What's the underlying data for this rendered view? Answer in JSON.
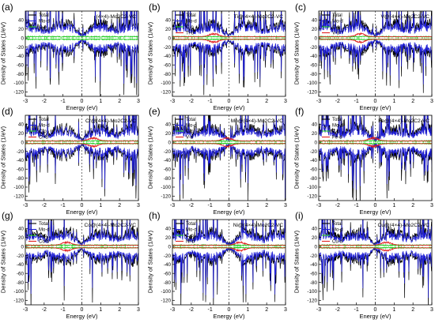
{
  "chart_data": [
    {
      "panel": "(a)",
      "annotation": "(4×4)-Mo2C2-VC",
      "legend": [
        "Total",
        "Mo-d",
        "C-p"
      ],
      "dopant_color": null,
      "seed": 11,
      "type": "line",
      "xlabel": "Energy (eV)",
      "ylabel": "Density of States (1/eV)",
      "xlim": [
        -3,
        3
      ],
      "ylim": [
        -130,
        60
      ],
      "xticks": [
        "-3",
        "-2",
        "-1",
        "0",
        "1",
        "2",
        "3"
      ],
      "yticks": [
        "-120",
        "-100",
        "-80",
        "-60",
        "-40",
        "-20",
        "0",
        "20",
        "40"
      ],
      "series": [
        {
          "name": "Total",
          "color": "#000000"
        },
        {
          "name": "Mo-d",
          "color": "#1f1fd6"
        },
        {
          "name": "C-p",
          "color": "#22cc22"
        }
      ]
    },
    {
      "panel": "(b)",
      "annotation": "Ti@(4×4)-Mo2C2-VC",
      "legend": [
        "Total",
        "Mo-d",
        "C-p",
        "Ti-d"
      ],
      "dopant_color": "#e02020",
      "seed": 23,
      "type": "line",
      "xlabel": "Energy (eV)",
      "ylabel": "Density of States (1/eV)",
      "xlim": [
        -3,
        3
      ],
      "ylim": [
        -130,
        60
      ],
      "xticks": [
        "-3",
        "-2",
        "-1",
        "0",
        "1",
        "2",
        "3"
      ],
      "yticks": [
        "-120",
        "-100",
        "-80",
        "-60",
        "-40",
        "-20",
        "0",
        "20",
        "40"
      ],
      "series": [
        {
          "name": "Total",
          "color": "#000000"
        },
        {
          "name": "Mo-d",
          "color": "#1f1fd6"
        },
        {
          "name": "C-p",
          "color": "#22cc22"
        },
        {
          "name": "Ti-d",
          "color": "#e02020"
        }
      ]
    },
    {
      "panel": "(c)",
      "annotation": "V@(4×4)-Mo2C2-VC",
      "legend": [
        "Total",
        "Mo-d",
        "C-p",
        "V-d"
      ],
      "dopant_color": "#e02020",
      "seed": 37,
      "type": "line",
      "xlabel": "Energy (eV)",
      "ylabel": "Density of States (1/eV)",
      "xlim": [
        -3,
        3
      ],
      "ylim": [
        -130,
        60
      ],
      "xticks": [
        "-3",
        "-2",
        "-1",
        "0",
        "1",
        "2",
        "3"
      ],
      "yticks": [
        "-120",
        "-100",
        "-80",
        "-60",
        "-40",
        "-20",
        "0",
        "20",
        "40"
      ],
      "series": [
        {
          "name": "Total",
          "color": "#000000"
        },
        {
          "name": "Mo-d",
          "color": "#1f1fd6"
        },
        {
          "name": "C-p",
          "color": "#22cc22"
        },
        {
          "name": "V-d",
          "color": "#e02020"
        }
      ]
    },
    {
      "panel": "(d)",
      "annotation": "Cr@(4×4)-Mo2C2-VC",
      "legend": [
        "Total",
        "Mo-d",
        "C-p",
        "Cr-d"
      ],
      "dopant_color": "#e02020",
      "seed": 41,
      "type": "line",
      "xlabel": "Energy (eV)",
      "ylabel": "Density of States (1/eV)",
      "xlim": [
        -3,
        3
      ],
      "ylim": [
        -130,
        60
      ],
      "xticks": [
        "-3",
        "-2",
        "-1",
        "0",
        "1",
        "2",
        "3"
      ],
      "yticks": [
        "-120",
        "-100",
        "-80",
        "-60",
        "-40",
        "-20",
        "0",
        "20",
        "40"
      ],
      "series": [
        {
          "name": "Total",
          "color": "#000000"
        },
        {
          "name": "Mo-d",
          "color": "#1f1fd6"
        },
        {
          "name": "C-p",
          "color": "#22cc22"
        },
        {
          "name": "Cr-d",
          "color": "#e02020"
        }
      ]
    },
    {
      "panel": "(e)",
      "annotation": "Mn@(4×4)-Mo2C2-VC",
      "legend": [
        "Total",
        "Mo-d",
        "C-p",
        "V-d"
      ],
      "dopant_color": "#e02020",
      "seed": 53,
      "type": "line",
      "xlabel": "Energy (eV)",
      "ylabel": "Density of States (1/eV)",
      "xlim": [
        -3,
        3
      ],
      "ylim": [
        -130,
        60
      ],
      "xticks": [
        "-3",
        "-2",
        "-1",
        "0",
        "1",
        "2",
        "3"
      ],
      "yticks": [
        "-120",
        "-100",
        "-80",
        "-60",
        "-40",
        "-20",
        "0",
        "20",
        "40"
      ],
      "series": [
        {
          "name": "Total",
          "color": "#000000"
        },
        {
          "name": "Mo-d",
          "color": "#1f1fd6"
        },
        {
          "name": "C-p",
          "color": "#22cc22"
        },
        {
          "name": "V-d",
          "color": "#e02020"
        }
      ]
    },
    {
      "panel": "(f)",
      "annotation": "Fe@(4×4)-Mo2C2-VC",
      "legend": [
        "Total",
        "Mo-d",
        "C-p",
        "Fe-d"
      ],
      "dopant_color": "#e02020",
      "seed": 67,
      "type": "line",
      "xlabel": "Energy (eV)",
      "ylabel": "Density of States (1/eV)",
      "xlim": [
        -3,
        3
      ],
      "ylim": [
        -130,
        60
      ],
      "xticks": [
        "-3",
        "-2",
        "-1",
        "0",
        "1",
        "2",
        "3"
      ],
      "yticks": [
        "-120",
        "-100",
        "-80",
        "-60",
        "-40",
        "-20",
        "0",
        "20",
        "40"
      ],
      "series": [
        {
          "name": "Total",
          "color": "#000000"
        },
        {
          "name": "Mo-d",
          "color": "#1f1fd6"
        },
        {
          "name": "C-p",
          "color": "#22cc22"
        },
        {
          "name": "Fe-d",
          "color": "#e02020"
        }
      ]
    },
    {
      "panel": "(g)",
      "annotation": "Co@(4×4)-Mo2C2-VC",
      "legend": [
        "Total",
        "Mo-d",
        "C-p",
        "Co-d"
      ],
      "dopant_color": "#e02020",
      "seed": 79,
      "type": "line",
      "xlabel": "Energy (eV)",
      "ylabel": "Density of States (1/eV)",
      "xlim": [
        -3,
        3
      ],
      "ylim": [
        -130,
        60
      ],
      "xticks": [
        "-3",
        "-2",
        "-1",
        "0",
        "1",
        "2",
        "3"
      ],
      "yticks": [
        "-120",
        "-100",
        "-80",
        "-60",
        "-40",
        "-20",
        "0",
        "20",
        "40"
      ],
      "series": [
        {
          "name": "Total",
          "color": "#000000"
        },
        {
          "name": "Mo-d",
          "color": "#1f1fd6"
        },
        {
          "name": "C-p",
          "color": "#22cc22"
        },
        {
          "name": "Co-d",
          "color": "#e02020"
        }
      ]
    },
    {
      "panel": "(h)",
      "annotation": "Ni@(4×4)-Mo2C2-VC",
      "legend": [
        "Total",
        "Mo-d",
        "C-p",
        "Ni-d"
      ],
      "dopant_color": "#e02020",
      "seed": 83,
      "type": "line",
      "xlabel": "Energy (eV)",
      "ylabel": "Density of States (1/eV)",
      "xlim": [
        -3,
        3
      ],
      "ylim": [
        -130,
        60
      ],
      "xticks": [
        "-3",
        "-2",
        "-1",
        "0",
        "1",
        "2",
        "3"
      ],
      "yticks": [
        "-120",
        "-100",
        "-80",
        "-60",
        "-40",
        "-20",
        "0",
        "20",
        "40"
      ],
      "series": [
        {
          "name": "Total",
          "color": "#000000"
        },
        {
          "name": "Mo-d",
          "color": "#1f1fd6"
        },
        {
          "name": "C-p",
          "color": "#22cc22"
        },
        {
          "name": "Ni-d",
          "color": "#e02020"
        }
      ]
    },
    {
      "panel": "(i)",
      "annotation": "Cu@(4×4)-Mo2C2-VC",
      "legend": [
        "Total",
        "Mo-d",
        "C-p",
        "Cu-d"
      ],
      "dopant_color": "#e02020",
      "seed": 97,
      "type": "line",
      "xlabel": "Energy (eV)",
      "ylabel": "Density of States (1/eV)",
      "xlim": [
        -3,
        3
      ],
      "ylim": [
        -130,
        60
      ],
      "xticks": [
        "-3",
        "-2",
        "-1",
        "0",
        "1",
        "2",
        "3"
      ],
      "yticks": [
        "-120",
        "-100",
        "-80",
        "-60",
        "-40",
        "-20",
        "0",
        "20",
        "40"
      ],
      "series": [
        {
          "name": "Total",
          "color": "#000000"
        },
        {
          "name": "Mo-d",
          "color": "#1f1fd6"
        },
        {
          "name": "C-p",
          "color": "#22cc22"
        },
        {
          "name": "Cu-d",
          "color": "#e02020"
        }
      ]
    }
  ],
  "colors": {
    "total": "#000000",
    "mo_d": "#1f1fd6",
    "c_p": "#22cc22",
    "dopant": "#e02020",
    "axis": "#000000",
    "fermi": "#555555"
  }
}
